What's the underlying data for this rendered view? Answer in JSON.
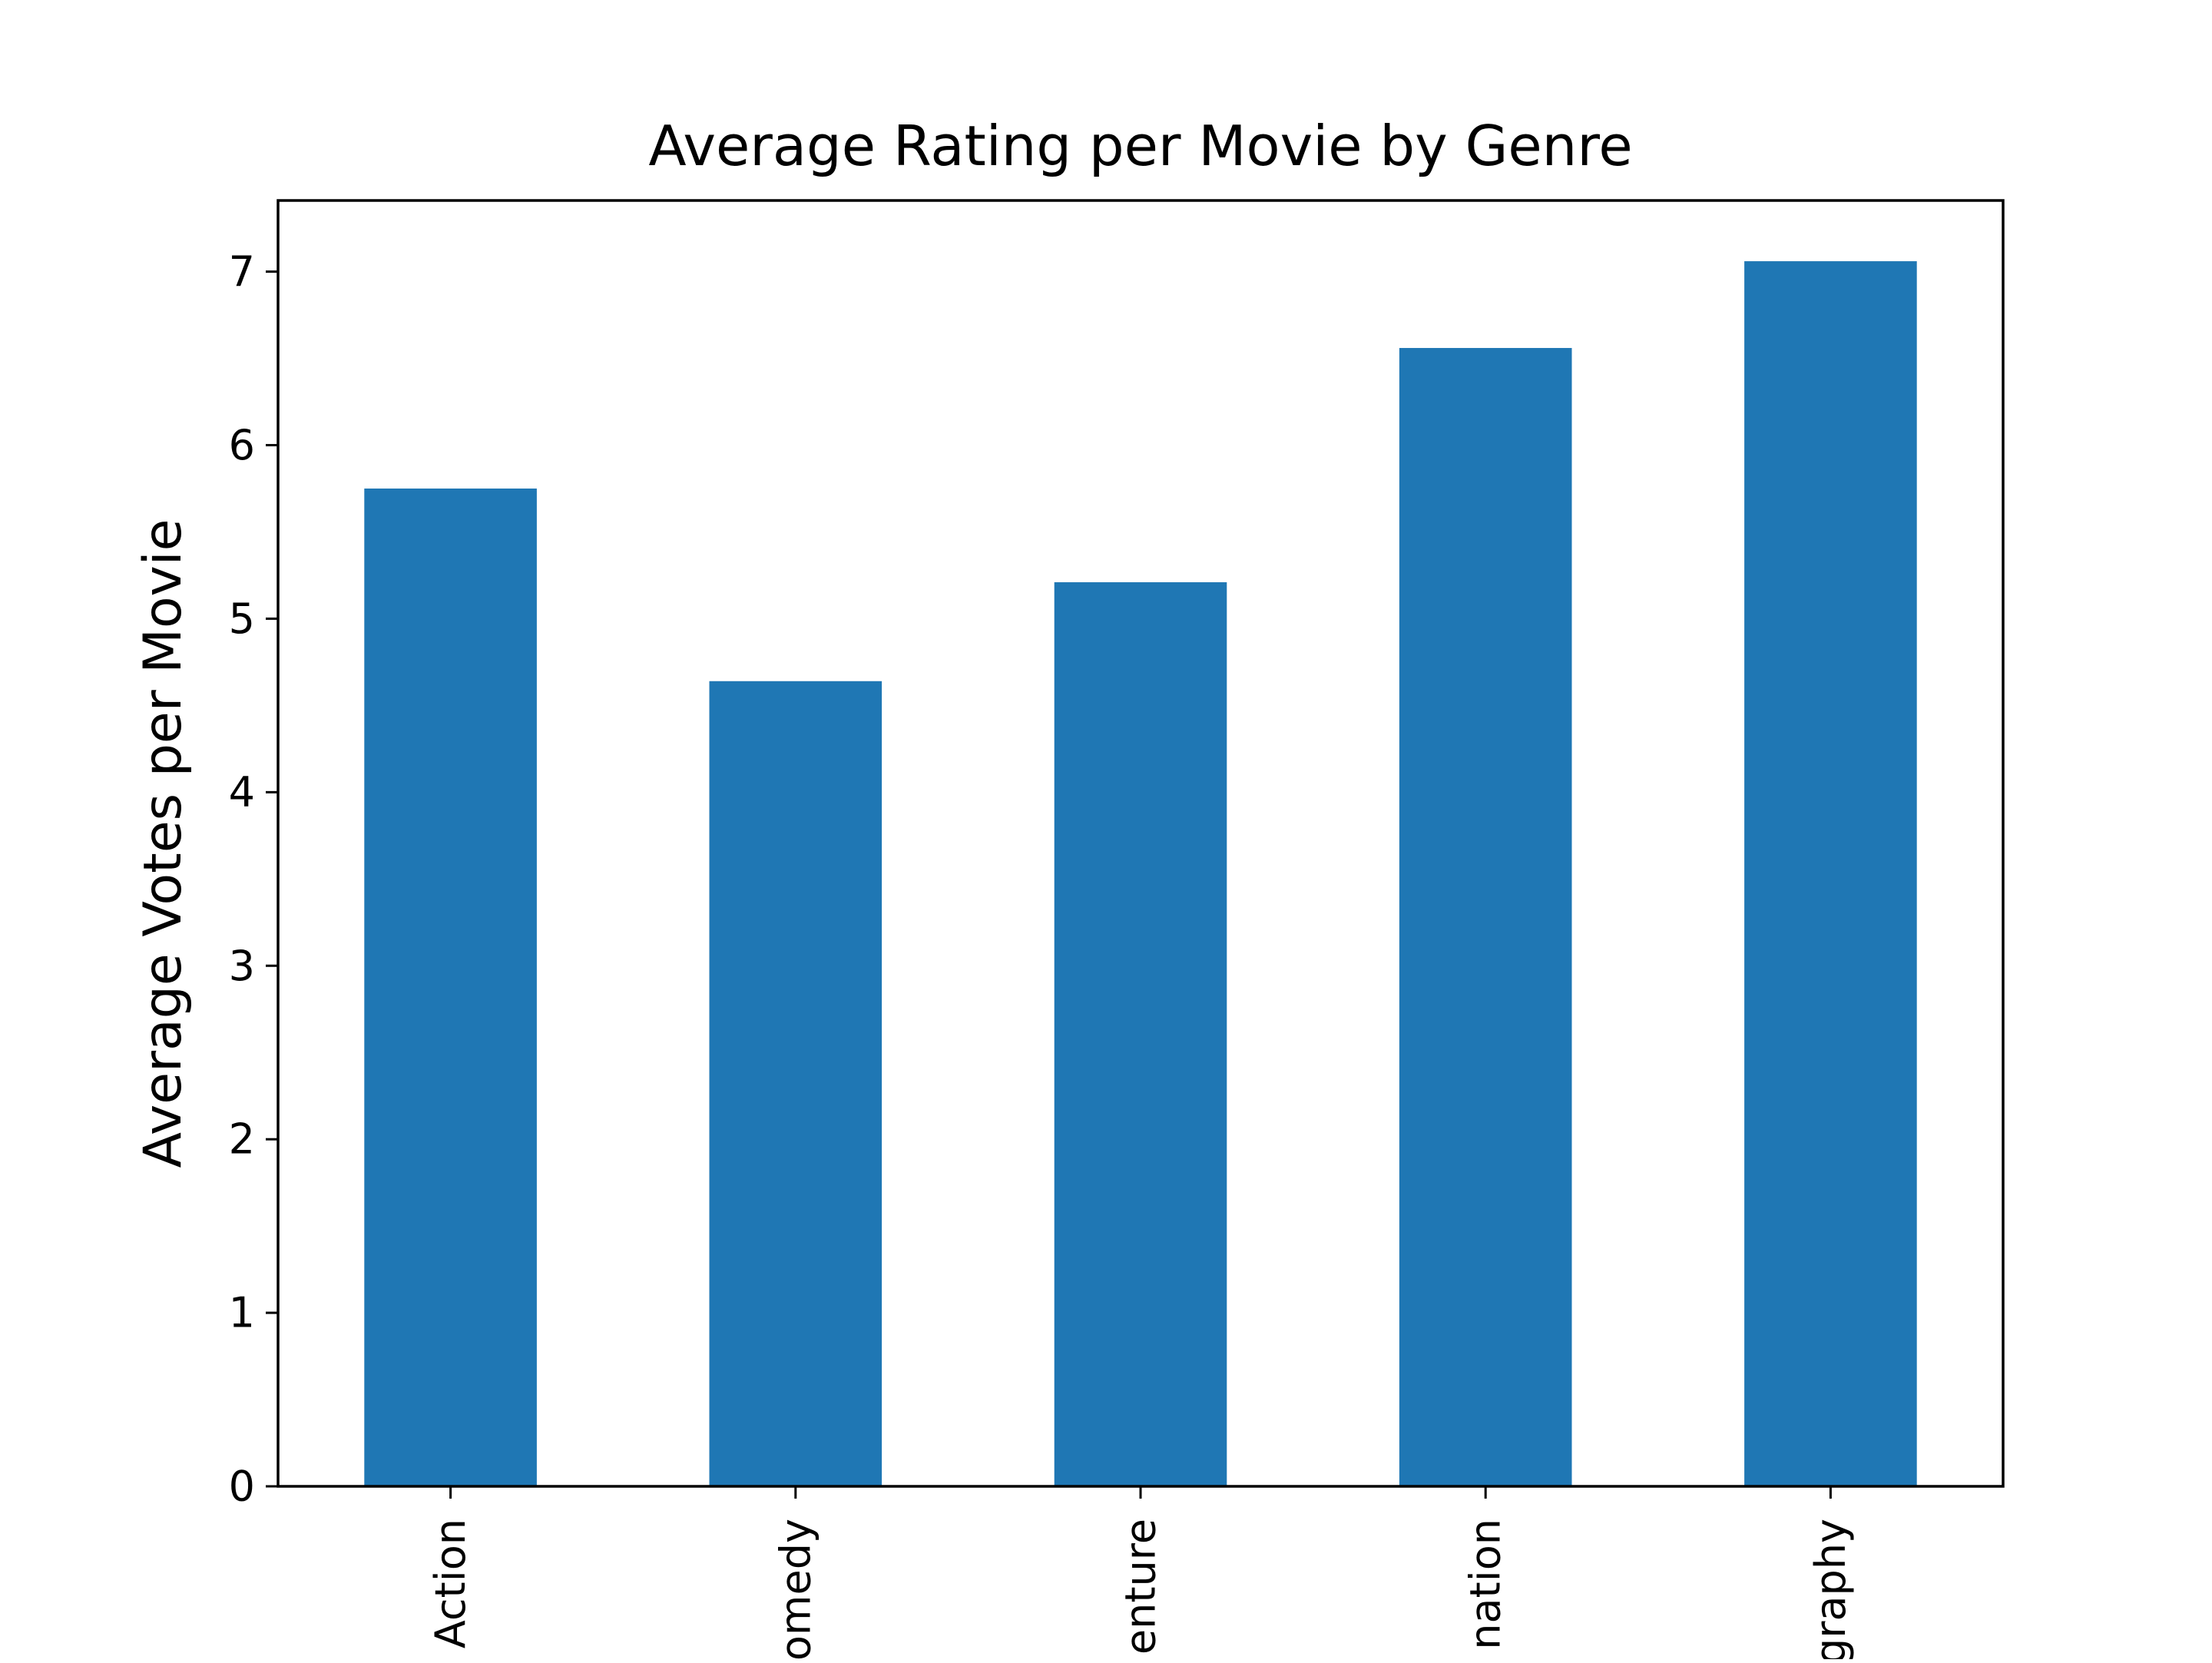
{
  "chart_data": {
    "type": "bar",
    "title": "Average Rating per Movie by Genre",
    "xlabel": "",
    "ylabel": "Average Votes per Movie",
    "categories": [
      "Action",
      "omedy",
      "enture",
      "nation",
      "graphy"
    ],
    "values": [
      5.75,
      4.64,
      5.21,
      6.56,
      7.06
    ],
    "ylim": [
      0,
      7.41
    ],
    "yticks": [
      "0",
      "1",
      "2",
      "3",
      "4",
      "5",
      "6",
      "7"
    ],
    "grid": false,
    "legend": "none",
    "bar_color": "#1f77b4"
  }
}
